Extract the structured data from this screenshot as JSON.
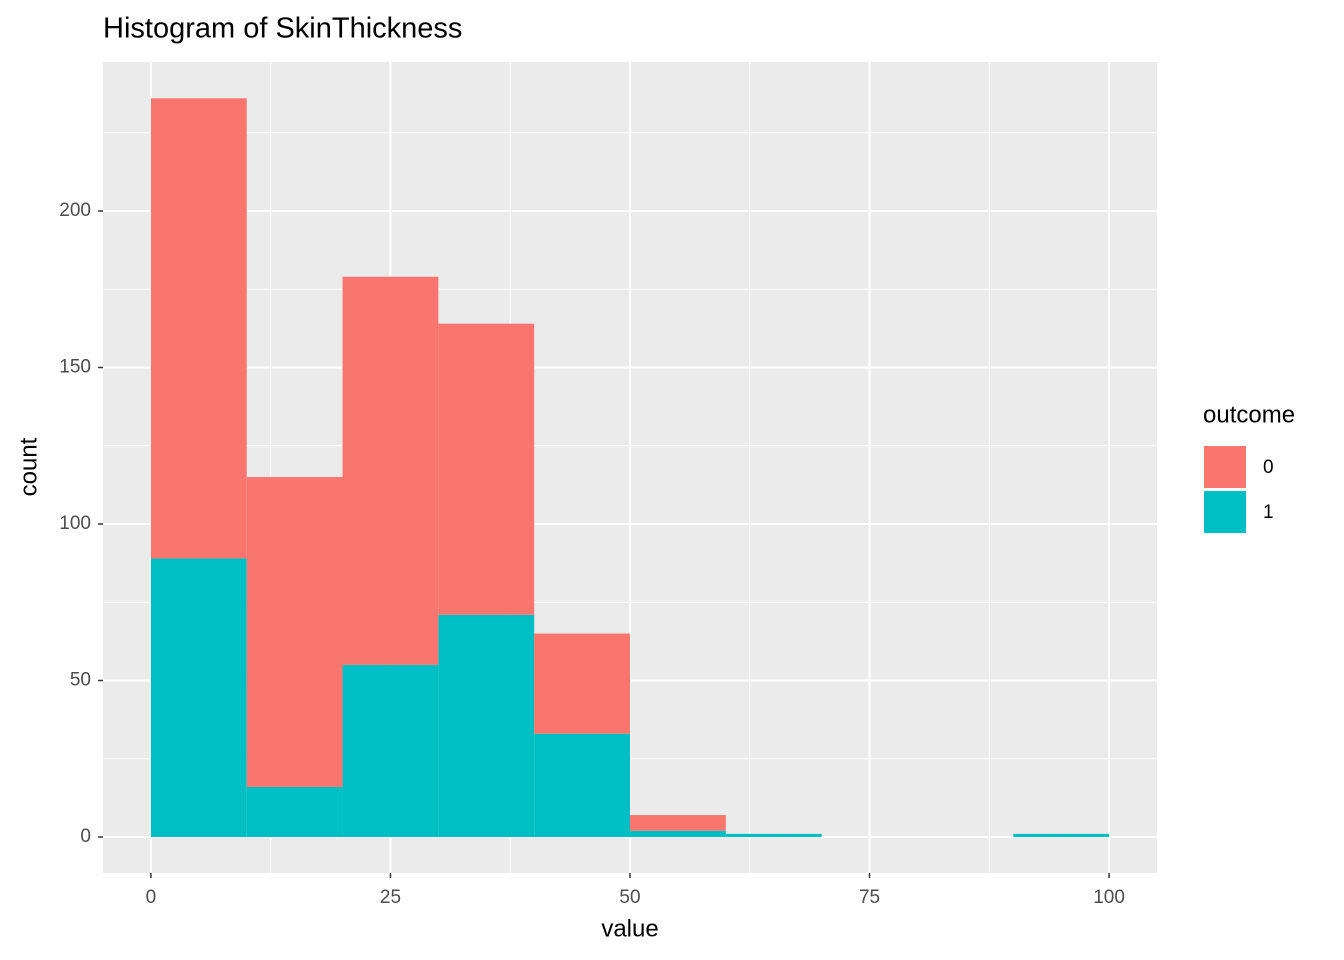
{
  "chart_data": {
    "type": "histogram",
    "title": "Histogram of SkinThickness",
    "x_label": "value",
    "y_label": "count",
    "bins": [
      0,
      10,
      20,
      30,
      40,
      50,
      60,
      70,
      80,
      90,
      100
    ],
    "series": [
      {
        "name": "0",
        "color": "#F8766D",
        "values": [
          147,
          99,
          124,
          93,
          32,
          5,
          0,
          0,
          0,
          0
        ]
      },
      {
        "name": "1",
        "color": "#00BFC4",
        "values": [
          89,
          16,
          55,
          71,
          33,
          2,
          1,
          0,
          0,
          1
        ]
      }
    ],
    "legend_title": "outcome",
    "legend_position": "right",
    "xlim": [
      -5,
      105
    ],
    "xticks": [
      0,
      25,
      50,
      75,
      100
    ],
    "ylim": [
      -11.5,
      247.6
    ],
    "yticks": [
      0,
      50,
      100,
      150,
      200
    ],
    "grid": true
  }
}
